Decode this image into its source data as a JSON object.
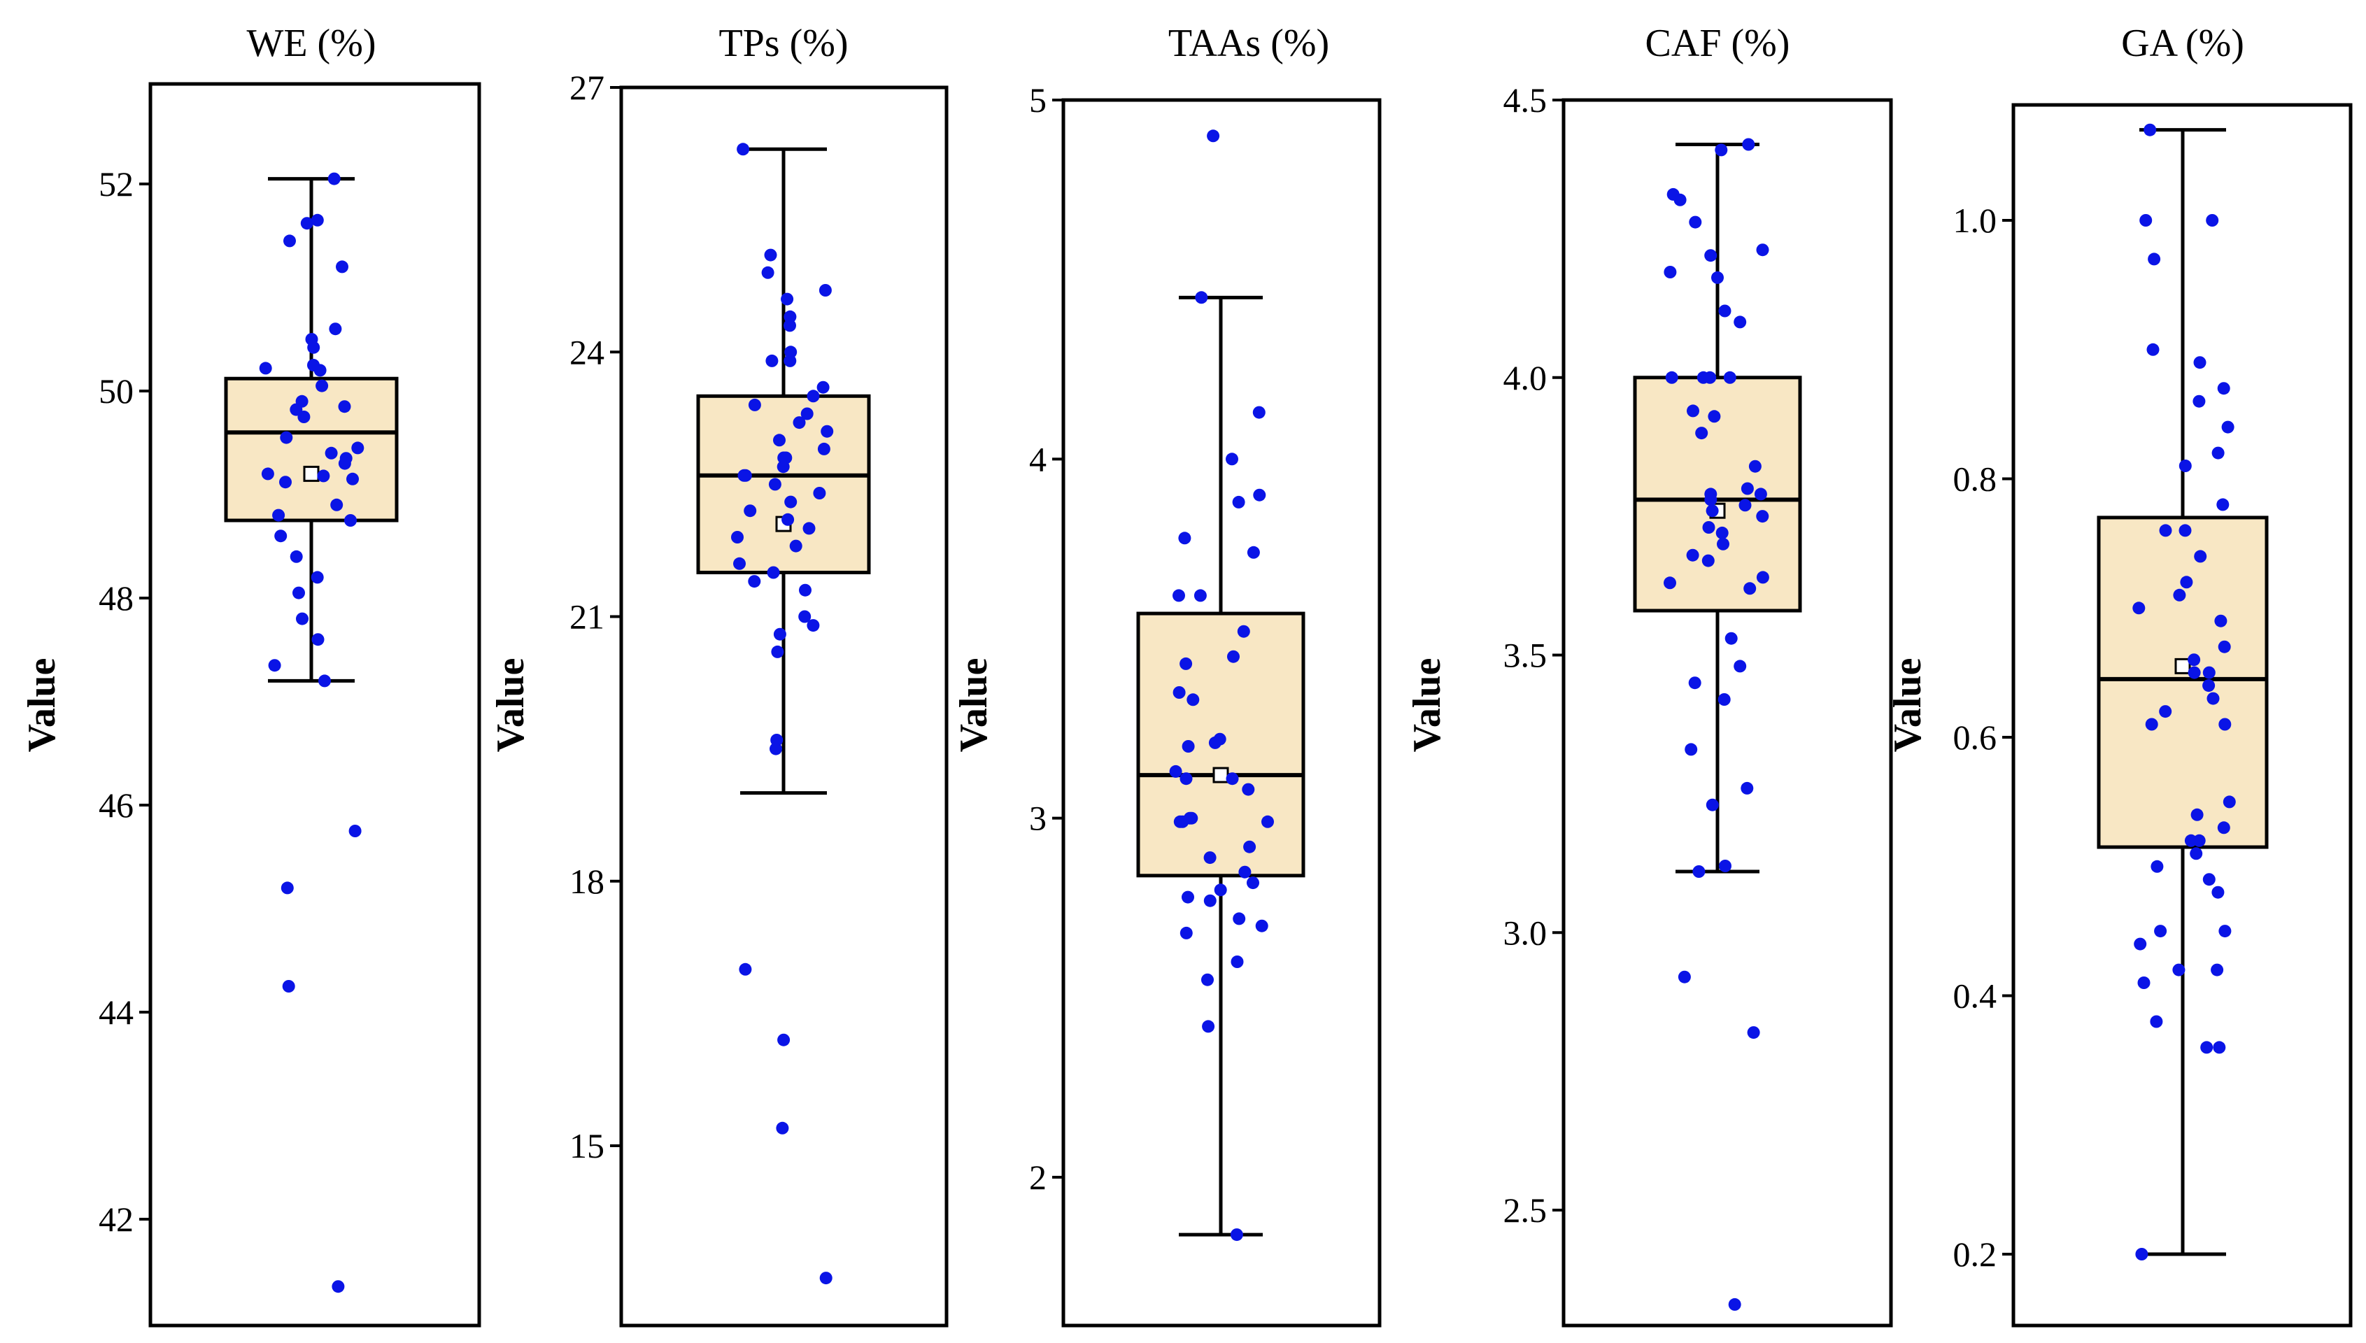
{
  "chart_data": [
    {
      "type": "box",
      "title": "WE (%)",
      "ylabel": "Value",
      "ylim": [
        40.95,
        53.0
      ],
      "yticks": [
        42,
        44,
        46,
        48,
        50,
        52
      ],
      "tick_labels": [
        "42",
        "44",
        "46",
        "48",
        "50",
        "52"
      ],
      "stats": {
        "min": 47.2,
        "q1": 48.75,
        "median": 49.6,
        "q3": 50.12,
        "max": 52.05,
        "mean": 49.2
      },
      "points": [
        52.05,
        51.65,
        51.62,
        51.45,
        51.2,
        50.6,
        50.5,
        50.42,
        50.25,
        50.22,
        50.2,
        50.05,
        49.9,
        49.85,
        49.82,
        49.75,
        49.55,
        49.45,
        49.4,
        49.35,
        49.3,
        49.2,
        49.18,
        49.15,
        49.12,
        48.9,
        48.8,
        48.75,
        48.6,
        48.4,
        48.2,
        48.05,
        47.8,
        47.6,
        47.35,
        47.2,
        45.75,
        45.2,
        44.25,
        41.35
      ]
    },
    {
      "type": "box",
      "title": "TPs (%)",
      "ylabel": "Value",
      "ylim": [
        13.0,
        27.0
      ],
      "yticks": [
        15,
        18,
        21,
        24,
        27
      ],
      "tick_labels": [
        "15",
        "18",
        "21",
        "24",
        "27"
      ],
      "stats": {
        "min": 19.0,
        "q1": 21.5,
        "median": 22.6,
        "q3": 23.5,
        "max": 26.3,
        "mean": 22.05
      },
      "points": [
        26.3,
        25.1,
        24.9,
        24.7,
        24.6,
        24.4,
        24.3,
        24.0,
        23.9,
        23.9,
        23.6,
        23.5,
        23.4,
        23.3,
        23.2,
        23.1,
        23.0,
        22.9,
        22.8,
        22.8,
        22.7,
        22.6,
        22.6,
        22.5,
        22.4,
        22.3,
        22.2,
        22.1,
        22.0,
        21.9,
        21.8,
        21.6,
        21.5,
        21.4,
        21.3,
        21.0,
        20.9,
        20.8,
        20.6,
        19.6,
        19.5,
        17.0,
        16.2,
        15.2,
        13.5
      ]
    },
    {
      "type": "box",
      "title": "TAAs (%)",
      "ylabel": "Value",
      "ylim": [
        1.6,
        5.0
      ],
      "yticks": [
        2,
        3,
        4,
        5
      ],
      "tick_labels": [
        "2",
        "3",
        "4",
        "5"
      ],
      "stats": {
        "min": 1.84,
        "q1": 2.84,
        "median": 3.12,
        "q3": 3.57,
        "max": 4.45,
        "mean": 3.12
      },
      "points": [
        4.9,
        4.45,
        4.13,
        4.0,
        3.9,
        3.88,
        3.78,
        3.74,
        3.62,
        3.62,
        3.52,
        3.45,
        3.43,
        3.35,
        3.33,
        3.22,
        3.21,
        3.2,
        3.13,
        3.11,
        3.11,
        3.08,
        3.0,
        3.0,
        2.99,
        2.99,
        2.99,
        2.92,
        2.89,
        2.85,
        2.82,
        2.8,
        2.78,
        2.77,
        2.72,
        2.7,
        2.68,
        2.6,
        2.55,
        2.42,
        1.84
      ]
    },
    {
      "type": "box",
      "title": "CAF (%)",
      "ylabel": "Value",
      "ylim": [
        2.3,
        4.5
      ],
      "yticks": [
        2.5,
        3.0,
        3.5,
        4.0,
        4.5
      ],
      "tick_labels": [
        "2.5",
        "3.0",
        "3.5",
        "4.0",
        "4.5"
      ],
      "stats": {
        "min": 3.11,
        "q1": 3.58,
        "median": 3.78,
        "q3": 4.0,
        "max": 4.42,
        "mean": 3.76
      },
      "points": [
        4.42,
        4.41,
        4.33,
        4.32,
        4.28,
        4.23,
        4.22,
        4.19,
        4.18,
        4.12,
        4.1,
        4.0,
        4.0,
        4.0,
        4.0,
        3.94,
        3.93,
        3.9,
        3.84,
        3.8,
        3.79,
        3.79,
        3.78,
        3.77,
        3.76,
        3.75,
        3.73,
        3.72,
        3.7,
        3.68,
        3.67,
        3.64,
        3.63,
        3.62,
        3.53,
        3.48,
        3.45,
        3.42,
        3.33,
        3.26,
        3.23,
        3.12,
        3.11,
        2.92,
        2.82,
        2.33
      ]
    },
    {
      "type": "box",
      "title": "GA (%)",
      "ylabel": "Value",
      "ylim": [
        0.16,
        1.1
      ],
      "yticks": [
        0.2,
        0.4,
        0.6,
        0.8,
        1.0
      ],
      "tick_labels": [
        "0.2",
        "0.4",
        "0.6",
        "0.8",
        "1.0"
      ],
      "stats": {
        "min": 0.2,
        "q1": 0.515,
        "median": 0.645,
        "q3": 0.77,
        "max": 1.07,
        "mean": 0.655
      },
      "points": [
        1.07,
        1.0,
        1.0,
        0.97,
        0.9,
        0.89,
        0.87,
        0.86,
        0.84,
        0.82,
        0.81,
        0.78,
        0.76,
        0.76,
        0.74,
        0.72,
        0.71,
        0.7,
        0.69,
        0.67,
        0.66,
        0.65,
        0.65,
        0.64,
        0.63,
        0.62,
        0.61,
        0.61,
        0.55,
        0.54,
        0.53,
        0.52,
        0.52,
        0.51,
        0.5,
        0.49,
        0.48,
        0.45,
        0.45,
        0.44,
        0.42,
        0.42,
        0.41,
        0.38,
        0.36,
        0.36,
        0.2
      ]
    }
  ],
  "colors": {
    "box_fill": "#f8e7c4",
    "point": "#0a14e6",
    "line": "#000000"
  }
}
